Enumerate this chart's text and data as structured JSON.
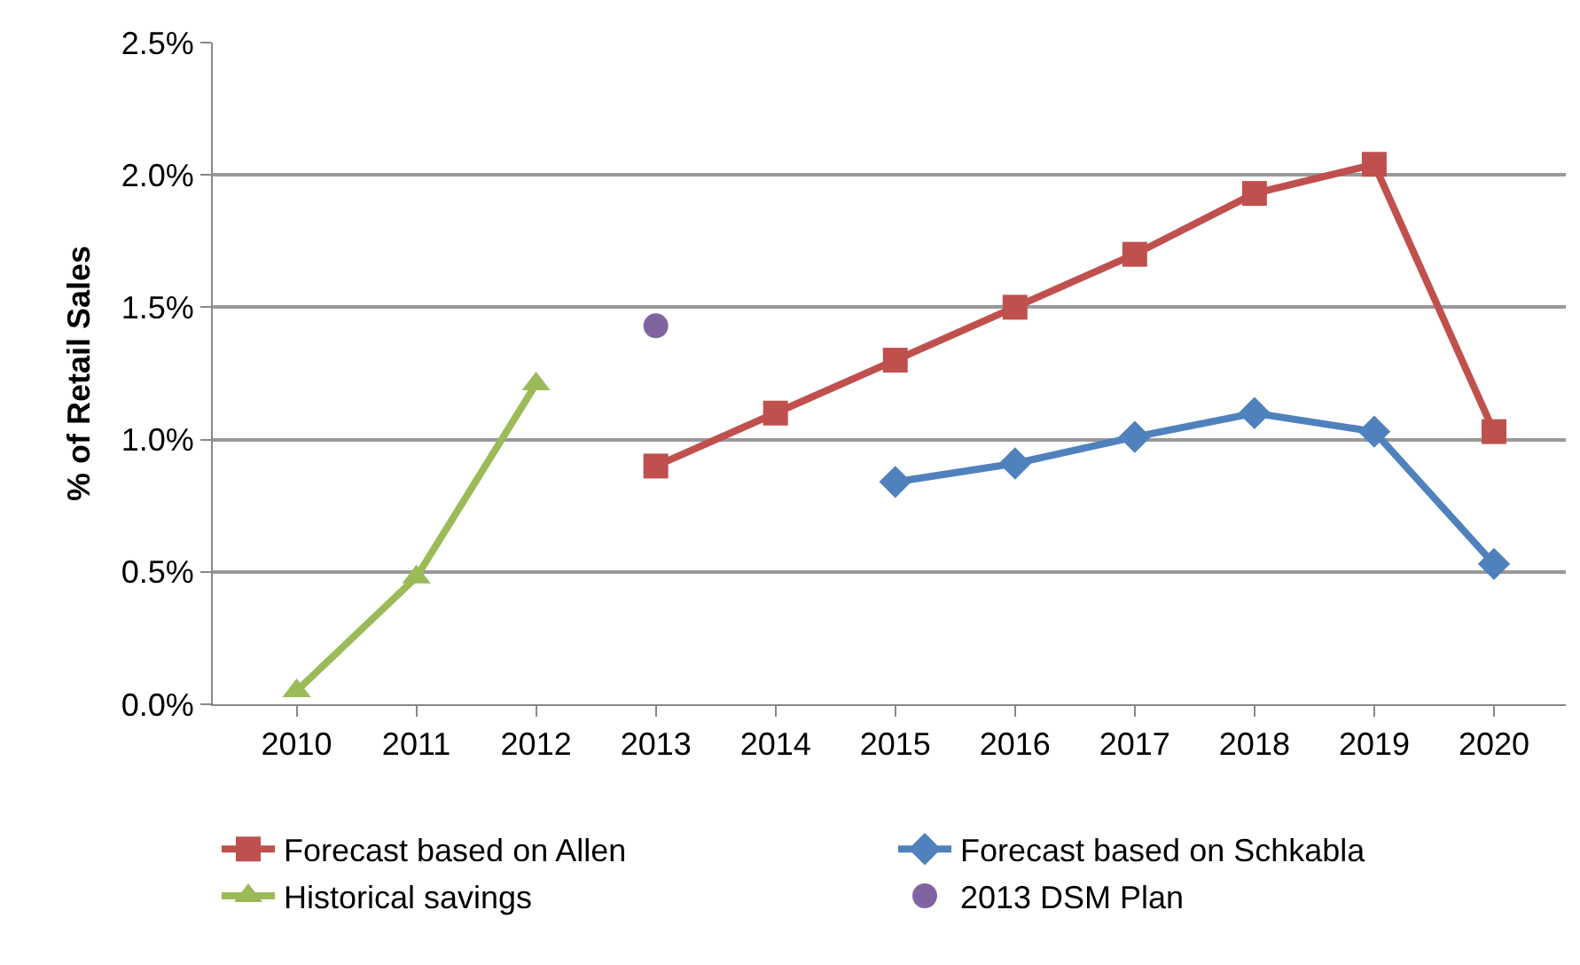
{
  "chart_data": {
    "type": "line",
    "ylabel": "% of Retail Sales",
    "categories": [
      "2010",
      "2011",
      "2012",
      "2013",
      "2014",
      "2015",
      "2016",
      "2017",
      "2018",
      "2019",
      "2020"
    ],
    "series": [
      {
        "name": "Forecast based on Allen",
        "color": "#c0504d",
        "marker": "square",
        "values": [
          null,
          null,
          null,
          0.9,
          1.1,
          1.3,
          1.5,
          1.7,
          1.93,
          2.04,
          1.03
        ]
      },
      {
        "name": "Forecast based on Schkabla",
        "color": "#4f81bd",
        "marker": "diamond",
        "values": [
          null,
          null,
          null,
          null,
          null,
          0.84,
          0.91,
          1.01,
          1.1,
          1.03,
          0.53
        ]
      },
      {
        "name": "Historical savings",
        "color": "#9bbb59",
        "marker": "triangle",
        "values": [
          0.05,
          0.48,
          1.21,
          null,
          null,
          null,
          null,
          null,
          null,
          null,
          null
        ]
      },
      {
        "name": "2013 DSM Plan",
        "color": "#8064a2",
        "marker": "circle",
        "type": "scatter",
        "values": [
          null,
          null,
          null,
          1.43,
          null,
          null,
          null,
          null,
          null,
          null,
          null
        ]
      }
    ],
    "ylim": [
      0,
      2.5
    ],
    "yticks": [
      {
        "value": 0,
        "label": "0.0%"
      },
      {
        "value": 0.5,
        "label": "0.5%"
      },
      {
        "value": 1,
        "label": "1.0%"
      },
      {
        "value": 1.5,
        "label": "1.5%"
      },
      {
        "value": 2,
        "label": "2.0%"
      },
      {
        "value": 2.5,
        "label": "2.5%"
      }
    ],
    "grid": "y",
    "legend": "bottom"
  }
}
